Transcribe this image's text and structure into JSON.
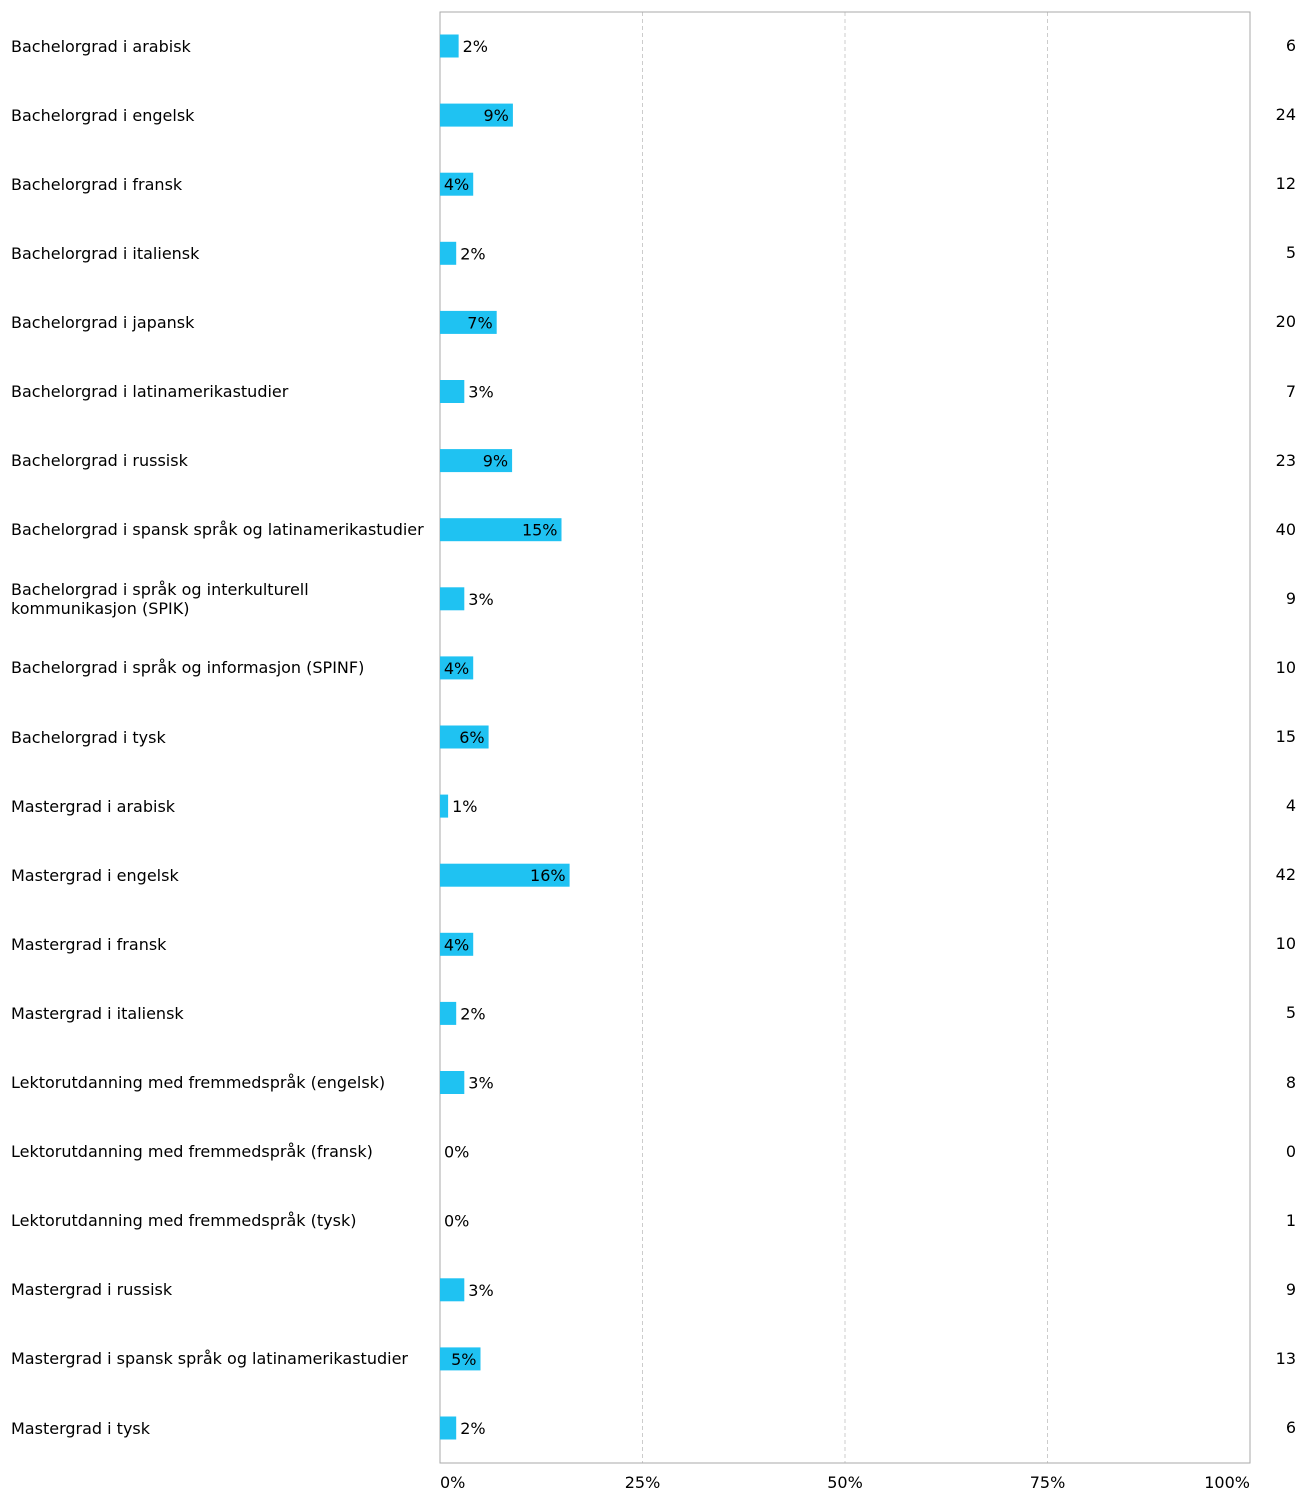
{
  "chart_data": {
    "type": "bar",
    "orientation": "horizontal",
    "categories": [
      "Bachelorgrad i arabisk",
      "Bachelorgrad i engelsk",
      "Bachelorgrad i fransk",
      "Bachelorgrad i italiensk",
      "Bachelorgrad i japansk",
      "Bachelorgrad i latinamerikastudier",
      "Bachelorgrad i russisk",
      "Bachelorgrad i spansk språk og latinamerikastudier",
      "Bachelorgrad i språk og interkulturell kommunikasjon (SPIK)",
      "Bachelorgrad i språk og informasjon (SPINF)",
      "Bachelorgrad i tysk",
      "Mastergrad i arabisk",
      "Mastergrad i engelsk",
      "Mastergrad i fransk",
      "Mastergrad i italiensk",
      "Lektorutdanning med fremmedspråk (engelsk)",
      "Lektorutdanning med fremmedspråk (fransk)",
      "Lektorutdanning med fremmedspråk (tysk)",
      "Mastergrad i russisk",
      "Mastergrad i spansk språk og latinamerikastudier",
      "Mastergrad i tysk"
    ],
    "values": [
      2.3,
      9.0,
      4.1,
      2.0,
      7.0,
      3.0,
      8.9,
      15.0,
      3.0,
      4.1,
      6.0,
      1.0,
      16.0,
      4.1,
      2.0,
      3.0,
      0,
      0,
      3.0,
      5.0,
      2.0
    ],
    "value_labels": [
      "2%",
      "9%",
      "4%",
      "2%",
      "7%",
      "3%",
      "9%",
      "15%",
      "3%",
      "4%",
      "6%",
      "1%",
      "16%",
      "4%",
      "2%",
      "3%",
      "0%",
      "0%",
      "3%",
      "5%",
      "2%"
    ],
    "counts": [
      "6",
      "24",
      "12",
      "5",
      "20",
      "7",
      "23",
      "40",
      "9",
      "10",
      "15",
      "4",
      "42",
      "10",
      "5",
      "8",
      "0",
      "1",
      "9",
      "13",
      "6"
    ],
    "x_ticks": [
      0,
      25,
      50,
      75,
      100
    ],
    "x_tick_labels": [
      "0%",
      "25%",
      "50%",
      "75%",
      "100%"
    ],
    "xlim": [
      0,
      100
    ],
    "grid": "vertical dashed",
    "bar_color": "#1fc2f2",
    "grid_color": "#cccccc",
    "frame_color": "#aaaaaa"
  }
}
